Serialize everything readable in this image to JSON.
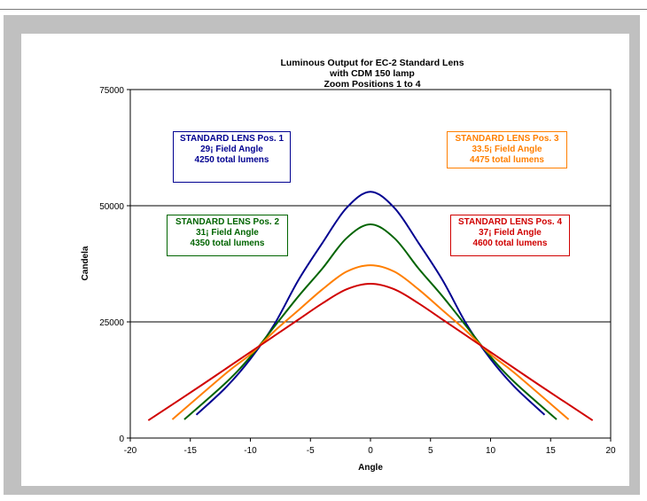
{
  "chart_data": {
    "type": "line",
    "title_lines": [
      "Luminous Output for EC-2 Standard Lens",
      "with CDM 150 lamp",
      "Zoom Positions 1 to 4"
    ],
    "xlabel": "Angle",
    "ylabel": "Candela",
    "xlim": [
      -20,
      20
    ],
    "ylim": [
      0,
      75000
    ],
    "x_ticks": [
      "-20",
      "-15",
      "-10",
      "-5",
      "0",
      "5",
      "10",
      "15",
      "20"
    ],
    "y_ticks": [
      "0",
      "25000",
      "50000",
      "75000"
    ],
    "gridlines_y": [
      25000,
      50000,
      75000
    ],
    "series": [
      {
        "color": "#000090",
        "x": [
          -14.5,
          -12,
          -10,
          -8,
          -6,
          -4,
          -2,
          0,
          2,
          4,
          6,
          8,
          10,
          12,
          14.5
        ],
        "y": [
          5000,
          11000,
          17000,
          24500,
          34000,
          42000,
          49500,
          53000,
          49500,
          42000,
          34000,
          24500,
          17000,
          11000,
          5000
        ]
      },
      {
        "color": "#006400",
        "x": [
          -15.5,
          -12,
          -10,
          -8,
          -6,
          -4,
          -2,
          0,
          2,
          4,
          6,
          8,
          10,
          12,
          15.5
        ],
        "y": [
          4000,
          12000,
          17500,
          24000,
          30500,
          36500,
          43000,
          46000,
          43000,
          36500,
          30500,
          24000,
          17500,
          12000,
          4000
        ]
      },
      {
        "color": "#ff7f00",
        "x": [
          -16.5,
          -12,
          -10,
          -8,
          -6,
          -4,
          -2,
          0,
          2,
          4,
          6,
          8,
          10,
          12,
          16.5
        ],
        "y": [
          4000,
          14000,
          18000,
          23000,
          27500,
          32000,
          35800,
          37200,
          35800,
          32000,
          27500,
          23000,
          18000,
          14000,
          4000
        ]
      },
      {
        "color": "#d00000",
        "x": [
          -18.5,
          -14,
          -10,
          -8,
          -6,
          -4,
          -2,
          0,
          2,
          4,
          6,
          8,
          10,
          14,
          18.5
        ],
        "y": [
          3800,
          11500,
          18500,
          22000,
          25500,
          29000,
          32000,
          33200,
          32000,
          29000,
          25500,
          22000,
          18500,
          11500,
          3800
        ]
      }
    ],
    "annotations": [
      {
        "lines": [
          "STANDARD LENS Pos. 1",
          "29¡  Field Angle",
          "4250 total lumens"
        ],
        "color": "#000090"
      },
      {
        "lines": [
          "STANDARD LENS Pos. 2",
          "31¡ Field Angle",
          "4350 total lumens"
        ],
        "color": "#006400"
      },
      {
        "lines": [
          "STANDARD LENS Pos. 3",
          "33.5¡ Field Angle",
          "4475 total lumens"
        ],
        "color": "#ff7f00"
      },
      {
        "lines": [
          "STANDARD LENS Pos. 4",
          "37¡ Field Angle",
          "4600 total lumens"
        ],
        "color": "#d00000"
      }
    ]
  }
}
